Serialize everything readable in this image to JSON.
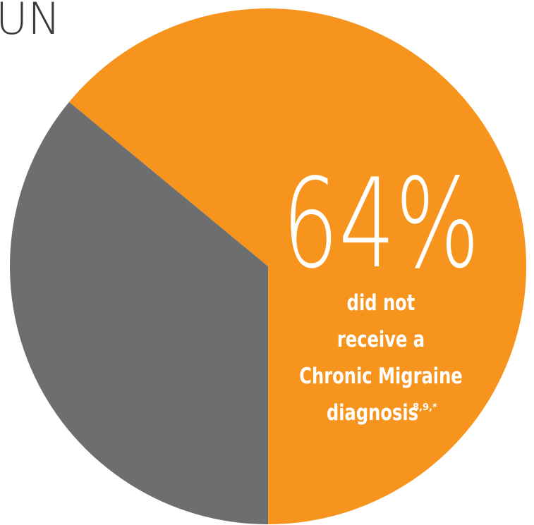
{
  "chart_data": {
    "type": "pie",
    "title": "UN",
    "categories": [
      [
        "did not",
        "receive a",
        "Chronic Migraine",
        "diagnosis"
      ],
      null
    ],
    "category_notes": [
      "8,9,*",
      null
    ],
    "values": [
      64,
      36
    ],
    "value_labels": [
      "64%",
      null
    ],
    "colors": [
      "#f7941d",
      "#6d6e70"
    ]
  }
}
